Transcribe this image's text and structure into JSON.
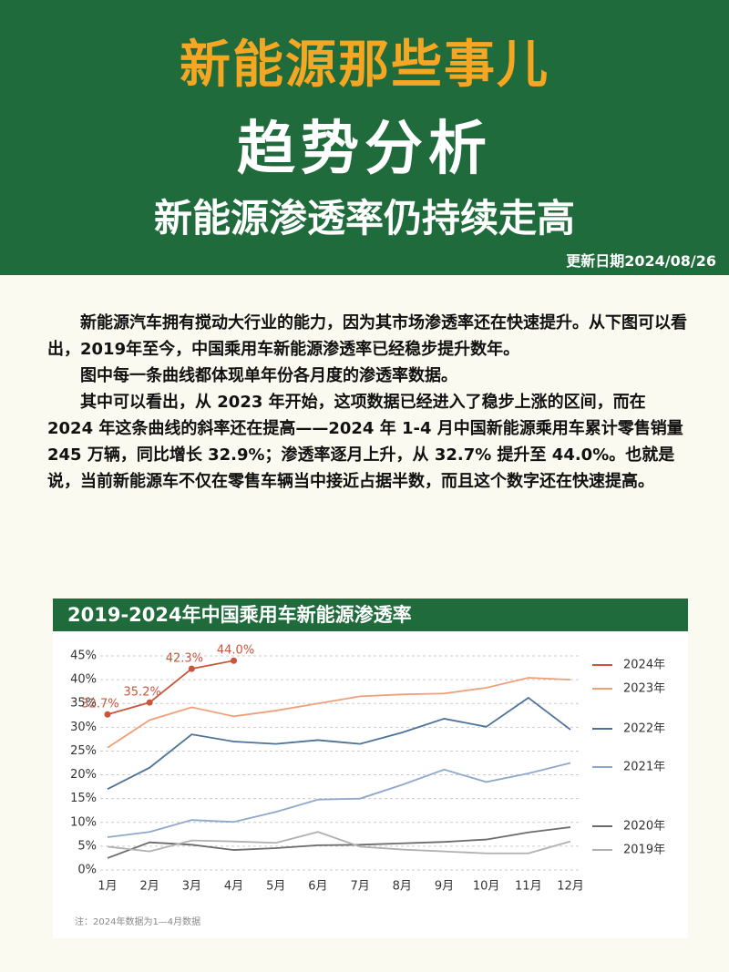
{
  "header": {
    "title": "新能源那些事儿",
    "subtitle": "趋势分析",
    "headline": "新能源渗透率仍持续走高",
    "date": "更新日期2024/08/26"
  },
  "body": {
    "paragraphs": [
      "新能源汽车拥有搅动大行业的能力，因为其市场渗透率还在快速提升。从下图可以看出，2019年至今，中国乘用车新能源渗透率已经稳步提升数年。",
      "图中每一条曲线都体现单年份各月度的渗透率数据。",
      "其中可以看出，从 2023 年开始，这项数据已经进入了稳步上涨的区间，而在 2024 年这条曲线的斜率还在提高——2024 年 1-4 月中国新能源乘用车累计零售销量 245 万辆，同比增长 32.9%；渗透率逐月上升，从 32.7% 提升至 44.0%。也就是说，当前新能源车不仅在零售车辆当中接近占据半数，而且这个数字还在快速提高。"
    ]
  },
  "chart_data": {
    "type": "line",
    "title": "2019-2024年中国乘用车新能源渗透率",
    "note": "注：2024年数据为1—4月数据",
    "categories": [
      "1月",
      "2月",
      "3月",
      "4月",
      "5月",
      "6月",
      "7月",
      "8月",
      "9月",
      "10月",
      "11月",
      "12月"
    ],
    "ylim": [
      0,
      45
    ],
    "yticks": [
      {
        "value": 0,
        "label": "0%"
      },
      {
        "value": 5,
        "label": "5%"
      },
      {
        "value": 10,
        "label": "10%"
      },
      {
        "value": 15,
        "label": "15%"
      },
      {
        "value": 20,
        "label": "20%"
      },
      {
        "value": 25,
        "label": "25%"
      },
      {
        "value": 30,
        "label": "30%"
      },
      {
        "value": 35,
        "label": "35%"
      },
      {
        "value": 40,
        "label": "40%"
      },
      {
        "value": 45,
        "label": "45%"
      }
    ],
    "grid": true,
    "legend": "right",
    "series": [
      {
        "name": "2024年",
        "color": "#c9553b",
        "marker": true,
        "values": [
          32.7,
          35.2,
          42.3,
          44.0,
          null,
          null,
          null,
          null,
          null,
          null,
          null,
          null
        ],
        "value_labels": [
          "32.7%",
          "35.2%",
          "42.3%",
          "44.0%",
          null,
          null,
          null,
          null,
          null,
          null,
          null,
          null
        ]
      },
      {
        "name": "2023年",
        "color": "#efa07a",
        "values": [
          25.7,
          31.5,
          34.2,
          32.3,
          33.5,
          35.0,
          36.5,
          36.9,
          37.1,
          38.3,
          40.4,
          40.0
        ]
      },
      {
        "name": "2022年",
        "color": "#4d7298",
        "values": [
          17.0,
          21.5,
          28.5,
          27.0,
          26.5,
          27.3,
          26.5,
          28.9,
          31.8,
          30.1,
          36.2,
          29.5
        ]
      },
      {
        "name": "2021年",
        "color": "#8ea8cb",
        "values": [
          6.9,
          8.0,
          10.5,
          10.1,
          12.2,
          14.8,
          15.0,
          17.9,
          21.1,
          18.5,
          20.3,
          22.5
        ]
      },
      {
        "name": "2020年",
        "color": "#6b6b6b",
        "values": [
          2.5,
          5.8,
          5.3,
          4.2,
          4.6,
          5.2,
          5.3,
          5.6,
          5.9,
          6.4,
          7.9,
          9.0
        ]
      },
      {
        "name": "2019年",
        "color": "#b0b0b0",
        "values": [
          4.9,
          3.9,
          6.2,
          6.0,
          5.7,
          8.0,
          4.9,
          4.3,
          3.9,
          3.5,
          3.5,
          6.0
        ]
      }
    ]
  }
}
